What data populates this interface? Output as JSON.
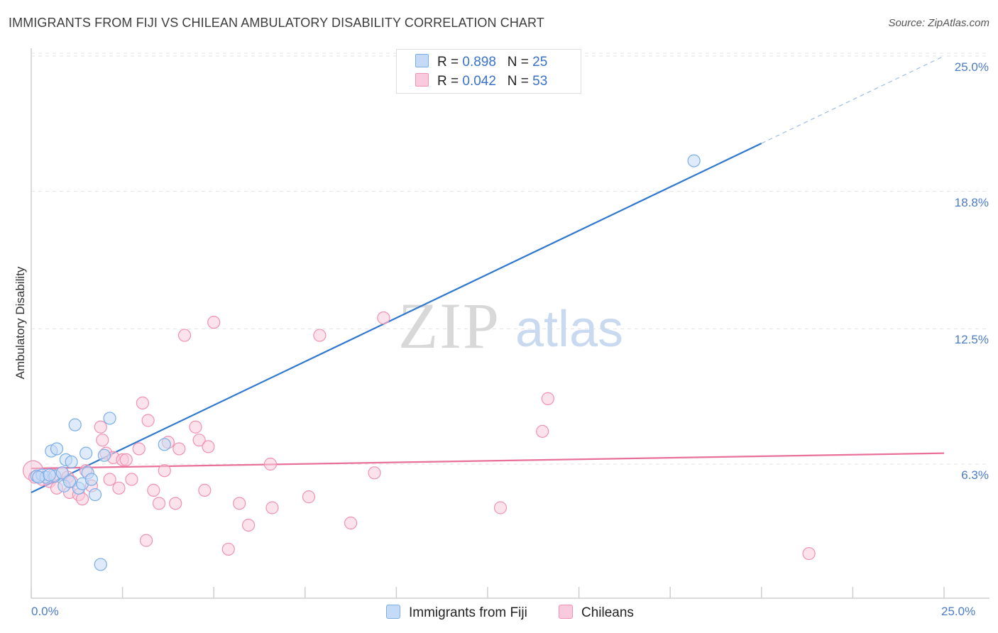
{
  "header": {
    "title": "IMMIGRANTS FROM FIJI VS CHILEAN AMBULATORY DISABILITY CORRELATION CHART",
    "source": "Source: ZipAtlas.com"
  },
  "watermark": {
    "zip": "ZIP",
    "atlas": "atlas"
  },
  "legend": {
    "r_label": "R =",
    "n_label": "N =",
    "rows": [
      {
        "r": "0.898",
        "n": "25"
      },
      {
        "r": "0.042",
        "n": "53"
      }
    ]
  },
  "chart_data": {
    "type": "scatter",
    "title": "IMMIGRANTS FROM FIJI VS CHILEAN AMBULATORY DISABILITY CORRELATION CHART",
    "xlabel": "",
    "ylabel": "Ambulatory Disability",
    "xlim": [
      0,
      25
    ],
    "ylim": [
      0,
      26
    ],
    "x_tick_labels": [
      "0.0%",
      "25.0%"
    ],
    "y_ticks": [
      6.3,
      12.5,
      18.8,
      25.0
    ],
    "y_tick_labels": [
      "6.3%",
      "12.5%",
      "18.8%",
      "25.0%"
    ],
    "series": [
      {
        "name": "Immigrants from Fiji",
        "color": "#7aaee8",
        "fill": "#c5daf6",
        "line_color": "#2f78d0",
        "trend": {
          "x0": 0.0,
          "y0": 5.0,
          "x1": 20.0,
          "y1": 21.0,
          "dash_to_x": 25.0,
          "dash_to_y": 25.0
        },
        "points": [
          [
            0.15,
            5.75
          ],
          [
            0.3,
            5.8
          ],
          [
            0.4,
            5.7
          ],
          [
            0.55,
            6.9
          ],
          [
            0.65,
            5.75
          ],
          [
            0.7,
            7.0
          ],
          [
            0.85,
            5.9
          ],
          [
            0.9,
            5.3
          ],
          [
            0.95,
            6.5
          ],
          [
            1.1,
            6.4
          ],
          [
            1.2,
            8.1
          ],
          [
            1.3,
            5.2
          ],
          [
            1.4,
            5.4
          ],
          [
            1.5,
            6.8
          ],
          [
            1.55,
            5.9
          ],
          [
            1.65,
            5.6
          ],
          [
            1.75,
            4.9
          ],
          [
            1.9,
            1.7
          ],
          [
            2.0,
            6.7
          ],
          [
            2.15,
            8.4
          ],
          [
            3.65,
            7.2
          ],
          [
            18.15,
            20.2
          ],
          [
            0.2,
            5.7
          ],
          [
            1.05,
            5.5
          ],
          [
            0.5,
            5.8
          ]
        ]
      },
      {
        "name": "Chileans",
        "color": "#f092b0",
        "fill": "#f9cadb",
        "line_color": "#e8709a",
        "trend": {
          "x0": 0.0,
          "y0": 6.1,
          "x1": 25.0,
          "y1": 6.8
        },
        "points": [
          [
            0.05,
            6.0
          ],
          [
            0.3,
            5.6
          ],
          [
            0.5,
            5.5
          ],
          [
            0.6,
            5.8
          ],
          [
            0.7,
            5.2
          ],
          [
            0.85,
            5.9
          ],
          [
            1.0,
            5.7
          ],
          [
            1.05,
            5.0
          ],
          [
            1.1,
            5.5
          ],
          [
            1.3,
            4.9
          ],
          [
            1.4,
            4.7
          ],
          [
            1.5,
            6.0
          ],
          [
            1.65,
            5.3
          ],
          [
            1.9,
            8.0
          ],
          [
            1.95,
            7.4
          ],
          [
            2.05,
            6.8
          ],
          [
            2.15,
            5.6
          ],
          [
            2.25,
            6.6
          ],
          [
            2.4,
            5.2
          ],
          [
            2.5,
            6.5
          ],
          [
            2.6,
            6.5
          ],
          [
            2.75,
            5.6
          ],
          [
            2.95,
            7.0
          ],
          [
            3.05,
            9.1
          ],
          [
            3.2,
            8.3
          ],
          [
            3.35,
            5.1
          ],
          [
            3.5,
            4.5
          ],
          [
            3.65,
            6.0
          ],
          [
            3.75,
            7.3
          ],
          [
            3.95,
            4.5
          ],
          [
            4.05,
            7.0
          ],
          [
            4.2,
            12.2
          ],
          [
            4.5,
            8.0
          ],
          [
            4.6,
            7.4
          ],
          [
            4.75,
            5.1
          ],
          [
            4.85,
            7.1
          ],
          [
            3.15,
            2.8
          ],
          [
            5.0,
            12.8
          ],
          [
            5.4,
            2.4
          ],
          [
            5.7,
            4.5
          ],
          [
            5.95,
            3.5
          ],
          [
            6.55,
            6.3
          ],
          [
            6.6,
            4.3
          ],
          [
            7.6,
            4.8
          ],
          [
            7.9,
            12.2
          ],
          [
            8.75,
            3.6
          ],
          [
            9.4,
            5.9
          ],
          [
            9.65,
            13.0
          ],
          [
            12.85,
            4.3
          ],
          [
            14.0,
            7.8
          ],
          [
            14.15,
            9.3
          ],
          [
            21.3,
            2.2
          ],
          [
            0.1,
            5.7
          ]
        ]
      }
    ]
  },
  "bottom_legend": {
    "items": [
      "Immigrants from Fiji",
      "Chileans"
    ]
  }
}
